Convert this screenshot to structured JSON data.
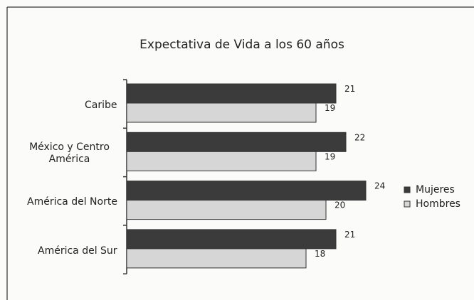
{
  "chart_data": {
    "type": "barh",
    "title": "Expectativa de Vida a los 60 años",
    "categories": [
      "Caribe",
      "México y Centro América",
      "América del Norte",
      "América del Sur"
    ],
    "series": [
      {
        "name": "Mujeres",
        "color": "#3b3b3b",
        "values": [
          21,
          22,
          24,
          21
        ]
      },
      {
        "name": "Hombres",
        "color": "#d6d6d6",
        "values": [
          19,
          19,
          20,
          18
        ]
      }
    ],
    "legend": "right"
  }
}
